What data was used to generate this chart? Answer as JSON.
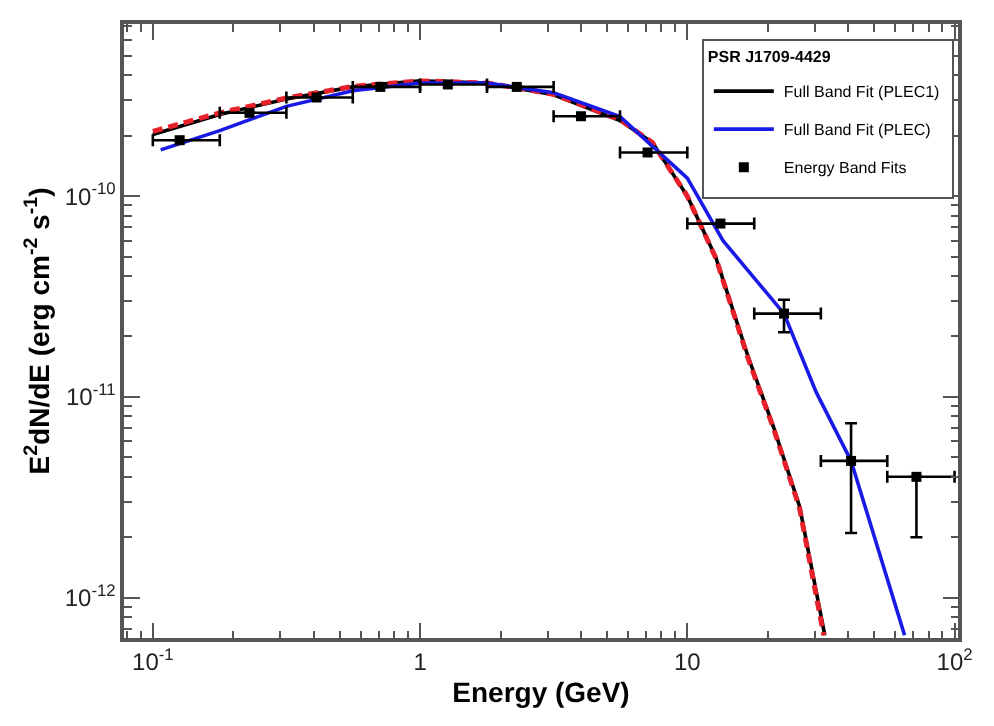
{
  "chart_data": {
    "type": "line",
    "xlabel": "Energy (GeV)",
    "ylabel": "E$^{2}$dN/dE (erg cm$^{-2}$ s$^{-1}$)",
    "legend_title": "PSR J1709-4429",
    "log": "xy",
    "legend": "top right",
    "xlim": [
      0.078,
      103
    ],
    "ylim": [
      6.3e-13,
      7.2e-10
    ],
    "xticks": [
      {
        "value": 0.1,
        "label": "10$^{-1}$"
      },
      1,
      10,
      {
        "value": 100,
        "label": "10$^{2}$"
      }
    ],
    "yticks": [
      {
        "value": 1e-12,
        "label": "10$^{-12}$"
      },
      {
        "value": 1e-11,
        "label": "10$^{-11}$"
      },
      {
        "value": 1e-10,
        "label": "10$^{-10}$"
      }
    ],
    "series": [
      {
        "name": "Full Band Fit (PLEC1)",
        "color": "#000000",
        "line_style": "solid",
        "x": [
          0.1,
          0.178,
          0.316,
          0.56,
          1.0,
          1.78,
          3.16,
          5.6,
          7.4,
          10,
          12.8,
          16.9,
          21,
          26.3,
          32.7
        ],
        "values": [
          2.03e-10,
          2.55e-10,
          3.05e-10,
          3.5e-10,
          3.75e-10,
          3.66e-10,
          3.2e-10,
          2.38e-10,
          1.85e-10,
          1e-10,
          4.93e-11,
          1.58e-11,
          7.1e-12,
          2.85e-12,
          6.5e-13
        ]
      },
      {
        "color": "#e8202a",
        "line_style": "dashed",
        "x": [
          0.1,
          0.178,
          0.316,
          0.56,
          1.0,
          1.78,
          3.16,
          5.6,
          7.4,
          10,
          12.8,
          16.9,
          21,
          26.3,
          32.4
        ],
        "values": [
          2.1e-10,
          2.6e-10,
          3.08e-10,
          3.52e-10,
          3.75e-10,
          3.66e-10,
          3.22e-10,
          2.4e-10,
          1.85e-10,
          1e-10,
          4.9e-11,
          1.55e-11,
          7e-12,
          2.8e-12,
          6.5e-13
        ]
      },
      {
        "name": "Full Band Fit (PLEC)",
        "color": "#1a1ae6",
        "line_style": "solid",
        "x": [
          0.107,
          0.178,
          0.316,
          0.56,
          1.0,
          1.78,
          3.16,
          5.6,
          10,
          13.6,
          23,
          30.4,
          41,
          65
        ],
        "values": [
          1.7e-10,
          2.12e-10,
          2.8e-10,
          3.35e-10,
          3.66e-10,
          3.66e-10,
          3.27e-10,
          2.49e-10,
          1.23e-10,
          6e-11,
          2.6e-11,
          1.05e-11,
          4.8e-12,
          6.5e-13
        ]
      },
      {
        "name": "Energy Band Fits",
        "type": "scatter",
        "color": "#000000",
        "marker": "square",
        "x": [
          0.126,
          0.23,
          0.41,
          0.71,
          1.27,
          2.3,
          4.0,
          7.1,
          13.3,
          23,
          41,
          72
        ],
        "values": [
          1.9e-10,
          2.6e-10,
          3.1e-10,
          3.5e-10,
          3.6e-10,
          3.5e-10,
          2.5e-10,
          1.65e-10,
          7.3e-11,
          2.6e-11,
          4.8e-12,
          4e-12
        ],
        "errors": [
          null,
          null,
          null,
          null,
          null,
          null,
          null,
          null,
          null,
          [
            2.1e-11,
            3.05e-11
          ],
          [
            2.1e-12,
            7.4e-12
          ],
          [
            2e-12,
            4e-12
          ]
        ],
        "xerrors": [
          [
            0.1,
            0.178
          ],
          [
            0.178,
            0.316
          ],
          [
            0.316,
            0.56
          ],
          [
            0.56,
            1.0
          ],
          [
            1.0,
            1.78
          ],
          [
            1.78,
            3.16
          ],
          [
            3.16,
            5.6
          ],
          [
            5.6,
            10
          ],
          [
            10,
            17.8
          ],
          [
            17.8,
            31.6
          ],
          [
            31.6,
            56
          ],
          [
            56,
            100
          ]
        ]
      }
    ]
  }
}
